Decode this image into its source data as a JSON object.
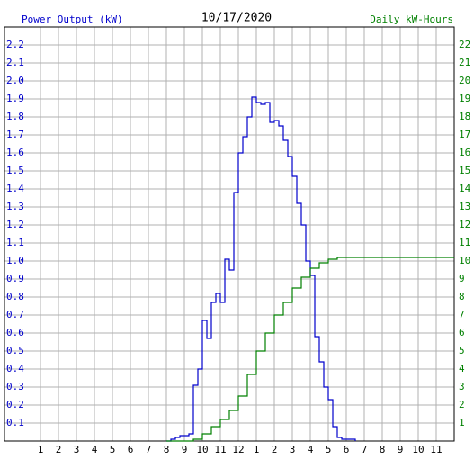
{
  "chart_data": {
    "type": "line",
    "title": "10/17/2020",
    "step": true,
    "grid": true,
    "xlim": [
      -1,
      24
    ],
    "xticks": [
      1,
      2,
      3,
      4,
      5,
      6,
      7,
      8,
      9,
      10,
      11,
      12,
      {
        "value": 13,
        "label": "1"
      },
      {
        "value": 14,
        "label": "2"
      },
      {
        "value": 15,
        "label": "3"
      },
      {
        "value": 16,
        "label": "4"
      },
      {
        "value": 17,
        "label": "5"
      },
      {
        "value": 18,
        "label": "6"
      },
      {
        "value": 19,
        "label": "7"
      },
      {
        "value": 20,
        "label": "8"
      },
      {
        "value": 21,
        "label": "9"
      },
      {
        "value": 22,
        "label": "10"
      },
      {
        "value": 23,
        "label": "11"
      }
    ],
    "ylim": [
      0,
      2.3
    ],
    "yticks": [
      0.1,
      0.2,
      0.3,
      0.4,
      0.5,
      0.6,
      0.7,
      0.8,
      0.9,
      {
        "value": 1,
        "label": "1.0"
      },
      1.1,
      1.2,
      1.3,
      1.4,
      1.5,
      1.6,
      1.7,
      1.8,
      1.9,
      {
        "value": 2,
        "label": "2.0"
      },
      2.1,
      2.2
    ],
    "y2lim": [
      0,
      23
    ],
    "y2ticks": [
      1,
      2,
      3,
      4,
      5,
      6,
      7,
      8,
      9,
      10,
      11,
      12,
      13,
      14,
      15,
      16,
      17,
      18,
      19,
      20,
      21,
      22
    ],
    "series": [
      {
        "name": "Power Output (kW)",
        "color": "#0000cc",
        "axis": "y",
        "x": [
          8,
          8.25,
          8.5,
          8.75,
          9,
          9.25,
          9.5,
          9.75,
          10,
          10.25,
          10.5,
          10.75,
          11,
          11.25,
          11.5,
          11.75,
          12,
          12.25,
          12.5,
          12.75,
          13,
          13.25,
          13.5,
          13.75,
          14,
          14.25,
          14.5,
          14.75,
          15,
          15.25,
          15.5,
          15.75,
          16,
          16.25,
          16.5,
          16.75,
          17,
          17.25,
          17.5,
          17.75,
          18,
          18.25,
          18.5
        ],
        "values": [
          0,
          0.01,
          0.02,
          0.03,
          0.03,
          0.04,
          0.31,
          0.4,
          0.67,
          0.57,
          0.77,
          0.82,
          0.77,
          1.01,
          0.95,
          1.38,
          1.6,
          1.69,
          1.8,
          1.91,
          1.88,
          1.87,
          1.88,
          1.77,
          1.78,
          1.75,
          1.67,
          1.58,
          1.47,
          1.32,
          1.2,
          1.0,
          0.92,
          0.58,
          0.44,
          0.3,
          0.23,
          0.08,
          0.02,
          0.01,
          0.01,
          0.01,
          0
        ]
      },
      {
        "name": "Daily kW-Hours",
        "color": "#008000",
        "axis": "y2",
        "x": [
          8,
          9,
          9.5,
          10,
          10.5,
          11,
          11.5,
          12,
          12.5,
          13,
          13.5,
          14,
          14.5,
          15,
          15.5,
          16,
          16.5,
          17,
          17.5,
          18,
          24
        ],
        "values": [
          0,
          0,
          0.1,
          0.4,
          0.8,
          1.2,
          1.7,
          2.5,
          3.7,
          5.0,
          6.0,
          7.0,
          7.7,
          8.5,
          9.1,
          9.6,
          9.9,
          10.1,
          10.2,
          10.2,
          10.2
        ]
      }
    ]
  }
}
